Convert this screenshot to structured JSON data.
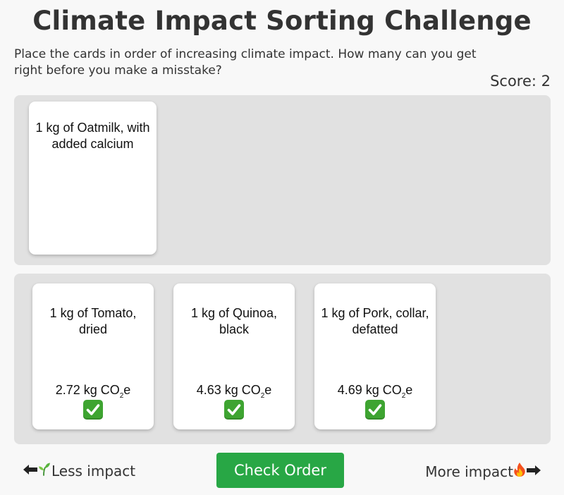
{
  "header": {
    "title": "Climate Impact Sorting Challenge",
    "instructions": "Place the cards in order of increasing climate impact. How many can you get right before you make a misstake?",
    "score_label": "Score: 2"
  },
  "current_card": {
    "name": "1 kg of Oatmilk, with added calcium"
  },
  "placed_cards": [
    {
      "name": "1 kg of Tomato, dried",
      "impact_value": "2.72 kg CO",
      "impact_sub": "2",
      "impact_suffix": "e",
      "correct": true,
      "status_icon": "check-mark-icon"
    },
    {
      "name": "1 kg of Quinoa, black",
      "impact_value": "4.63 kg CO",
      "impact_sub": "2",
      "impact_suffix": "e",
      "correct": true,
      "status_icon": "check-mark-icon"
    },
    {
      "name": "1 kg of Pork, collar, defatted",
      "impact_value": "4.69 kg CO",
      "impact_sub": "2",
      "impact_suffix": "e",
      "correct": true,
      "status_icon": "check-mark-icon"
    }
  ],
  "footer": {
    "less_label": "Less impact",
    "less_icons": [
      "arrow-left-icon",
      "seedling-icon"
    ],
    "check_button": "Check Order",
    "more_label": "More impact",
    "more_icons": [
      "fire-icon",
      "arrow-right-icon"
    ]
  },
  "colors": {
    "background": "#f8f8f8",
    "panel": "#e1e1e1",
    "card": "#ffffff",
    "button": "#28a745",
    "check": "#3ea431"
  }
}
